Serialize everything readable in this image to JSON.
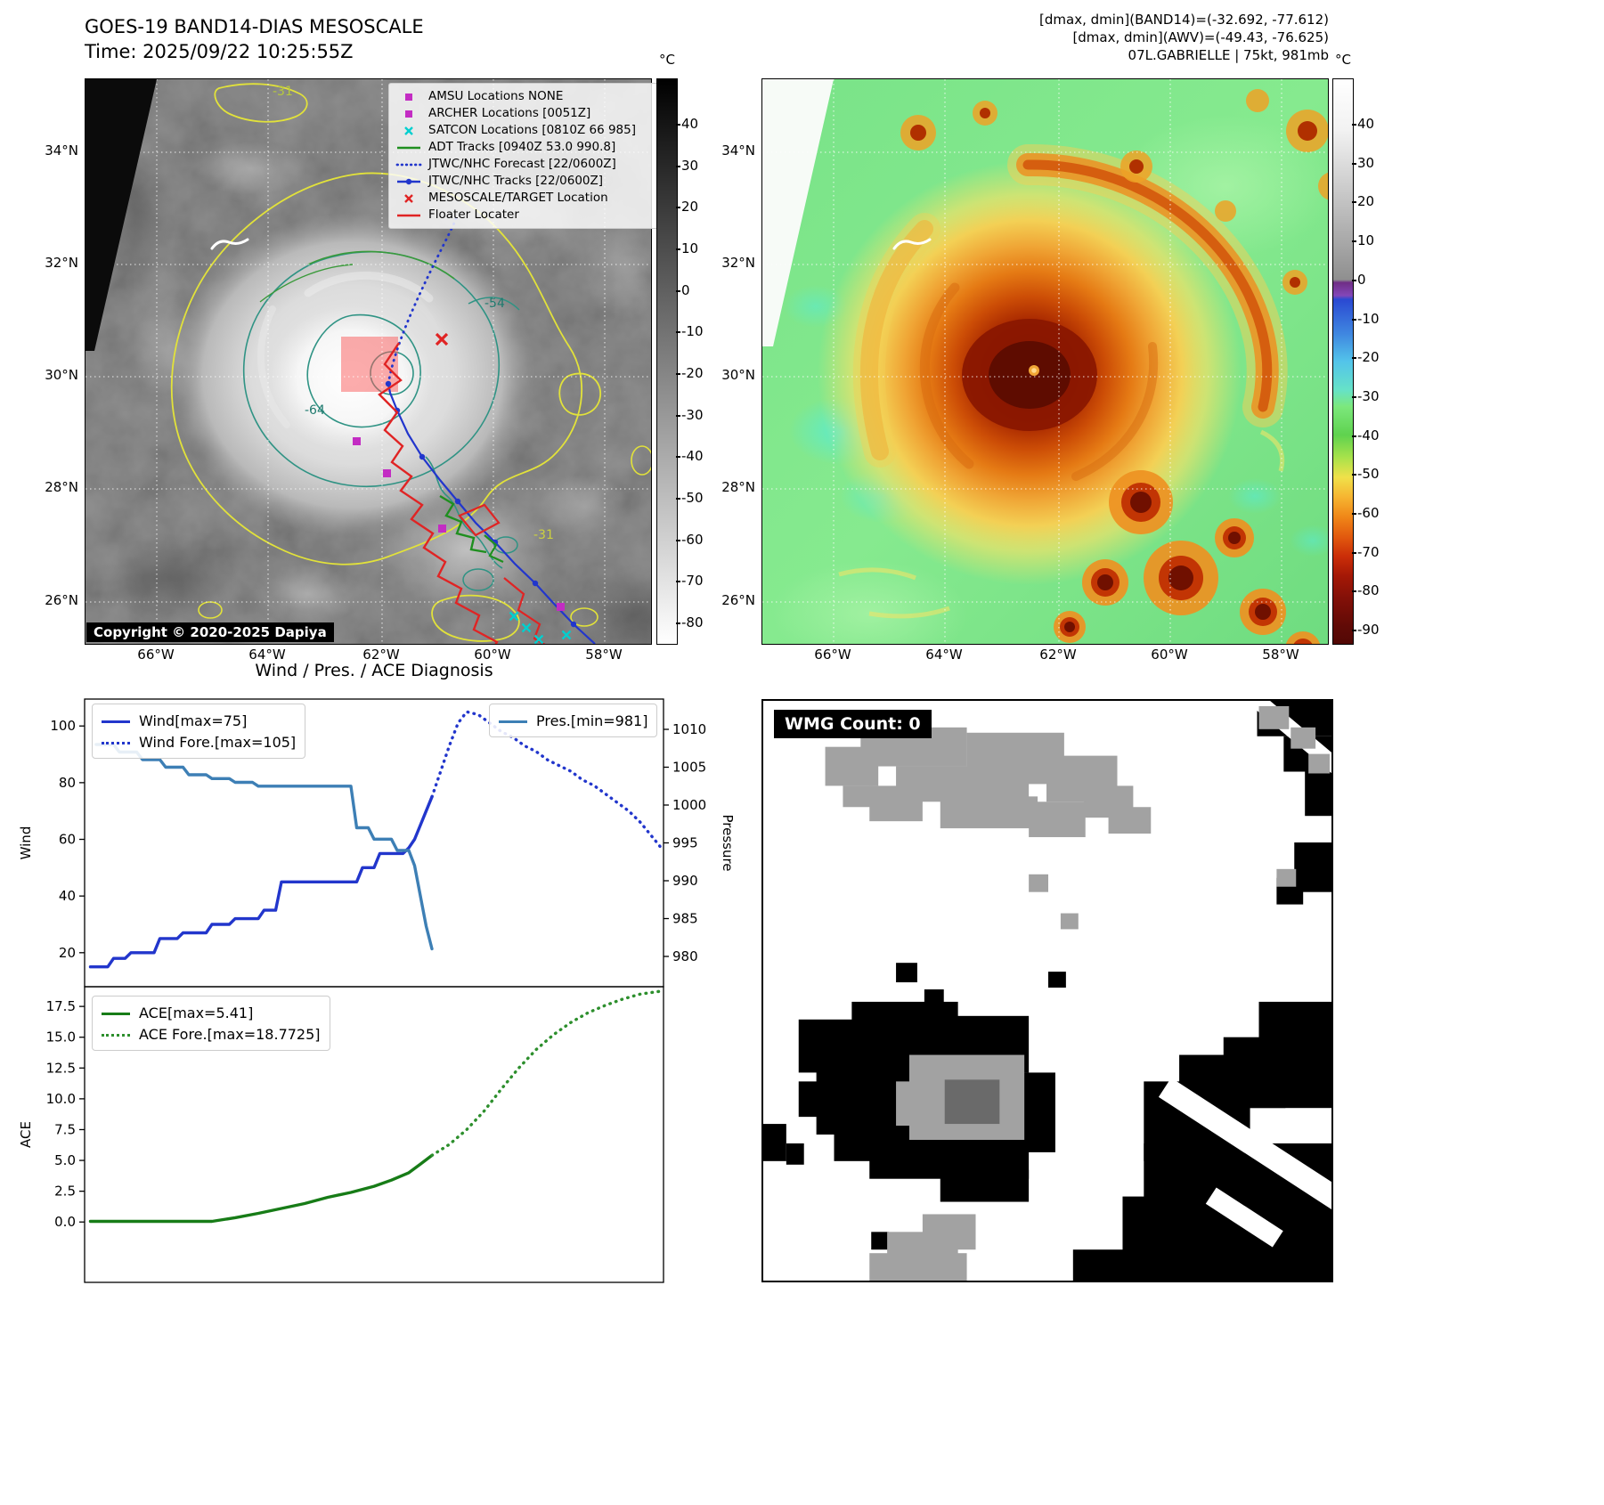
{
  "panel_tl": {
    "title": "GOES-19 BAND14-DIAS MESOSCALE",
    "subtitle": "Time: 2025/09/22 10:25:55Z",
    "copyright": "Copyright © 2020-2025 Dapiya",
    "lat_ticks": [
      "34°N",
      "32°N",
      "30°N",
      "28°N",
      "26°N"
    ],
    "lon_ticks": [
      "66°W",
      "64°W",
      "62°W",
      "60°W",
      "58°W"
    ],
    "colorbar_unit": "°C",
    "colorbar_ticks": [
      40,
      30,
      20,
      10,
      0,
      -10,
      -20,
      -30,
      -40,
      -50,
      -60,
      -70,
      -80
    ],
    "legend": [
      {
        "label": "AMSU Locations NONE",
        "marker": "square",
        "color": "#c32cc3"
      },
      {
        "label": "ARCHER Locations [0051Z]",
        "marker": "square",
        "color": "#c32cc3"
      },
      {
        "label": "SATCON Locations [0810Z 66 985]",
        "marker": "x",
        "color": "#00cfcf"
      },
      {
        "label": "ADT Tracks [0940Z 53.0 990.8]",
        "marker": "line",
        "color": "#1f8f1f"
      },
      {
        "label": "JTWC/NHC Forecast [22/0600Z]",
        "marker": "dotted",
        "color": "#2236cc"
      },
      {
        "label": "JTWC/NHC Tracks [22/0600Z]",
        "marker": "line-dot",
        "color": "#2236cc"
      },
      {
        "label": "MESOSCALE/TARGET Location",
        "marker": "x",
        "color": "#e02424"
      },
      {
        "label": "Floater Locater",
        "marker": "line",
        "color": "#e02424"
      }
    ],
    "contour_labels": {
      "c54": "-54",
      "c64": "-64",
      "c31a": "-31",
      "c31b": "-31"
    }
  },
  "panel_tr": {
    "info_line1": "[dmax, dmin](BAND14)=(-32.692, -77.612)",
    "info_line2": "[dmax, dmin](AWV)=(-49.43, -76.625)",
    "info_line3": "07L.GABRIELLE | 75kt, 981mb",
    "lat_ticks": [
      "34°N",
      "32°N",
      "30°N",
      "28°N",
      "26°N"
    ],
    "lon_ticks": [
      "66°W",
      "64°W",
      "62°W",
      "60°W",
      "58°W"
    ],
    "colorbar_unit": "°C",
    "colorbar_ticks": [
      40,
      30,
      20,
      10,
      0,
      -10,
      -20,
      -30,
      -40,
      -50,
      -60,
      -70,
      -80,
      -90
    ]
  },
  "panel_bl": {
    "title": "Wind / Pres. / ACE Diagnosis"
  },
  "panel_br": {
    "wmg_label": "WMG Count: 0"
  },
  "chart_data": [
    {
      "type": "line",
      "title": "Wind / Pres. / ACE Diagnosis",
      "ylabel_left": "Wind",
      "ylabel_right": "Pressure",
      "yticks_left": [
        20,
        40,
        60,
        80,
        100
      ],
      "yticks_right": [
        980,
        985,
        990,
        995,
        1000,
        1005,
        1010
      ],
      "ylim_left": [
        8,
        109.5
      ],
      "ylim_right": [
        976,
        1014
      ],
      "xlim": [
        0,
        100
      ],
      "ytick_decimals": 0,
      "series": [
        {
          "name": "Wind[max=75]",
          "style": "solid",
          "color": "#2236cc",
          "axis": "left",
          "x": [
            1,
            4,
            5,
            7,
            8,
            12,
            13,
            16,
            17,
            21,
            22,
            25,
            26,
            30,
            31,
            33,
            34,
            47,
            48,
            50,
            51,
            55,
            56,
            57,
            58,
            59,
            60
          ],
          "y": [
            15,
            15,
            18,
            18,
            20,
            20,
            25,
            25,
            27,
            27,
            30,
            30,
            32,
            32,
            35,
            35,
            45,
            45,
            50,
            50,
            55,
            55,
            57,
            60,
            65,
            70,
            75
          ]
        },
        {
          "name": "Wind Fore.[max=105]",
          "style": "dotted",
          "color": "#2236cc",
          "axis": "left",
          "x": [
            60,
            61.5,
            63,
            64.5,
            66,
            68,
            70,
            72,
            74,
            76,
            78,
            80,
            82,
            84,
            86,
            88,
            90,
            92,
            94,
            96,
            98,
            100
          ],
          "y": [
            75,
            84,
            93,
            101,
            105,
            104,
            101,
            98,
            96,
            93,
            91,
            88,
            86,
            84,
            81,
            79,
            76,
            73,
            70,
            66,
            61,
            56
          ]
        },
        {
          "name": "Pres.[min=981]",
          "style": "solid",
          "color": "#3d7fb5",
          "axis": "right",
          "x": [
            2,
            5,
            6,
            9,
            10,
            13,
            14,
            17,
            18,
            21,
            22,
            25,
            26,
            29,
            30,
            46,
            47,
            49,
            50,
            53,
            54,
            56,
            57,
            58,
            59,
            60
          ],
          "y": [
            1008,
            1008,
            1007,
            1007,
            1006,
            1006,
            1005,
            1005,
            1004,
            1004,
            1003.5,
            1003.5,
            1003,
            1003,
            1002.5,
            1002.5,
            997,
            997,
            995.5,
            995.5,
            994,
            994,
            992,
            988,
            984,
            981
          ]
        }
      ]
    },
    {
      "type": "line",
      "ylabel_left": "ACE",
      "yticks_left": [
        0,
        2.5,
        5,
        7.5,
        10,
        12.5,
        15,
        17.5
      ],
      "ylim_left": [
        -4.9,
        19.1
      ],
      "xlim": [
        0,
        100
      ],
      "ytick_decimals": 1,
      "series": [
        {
          "name": "ACE[max=5.41]",
          "style": "solid",
          "color": "#177c17",
          "axis": "left",
          "x": [
            1,
            22,
            26,
            30,
            34,
            38,
            42,
            46,
            50,
            53,
            56,
            58,
            60
          ],
          "y": [
            0.05,
            0.05,
            0.35,
            0.7,
            1.1,
            1.5,
            2.0,
            2.4,
            2.9,
            3.4,
            4.0,
            4.7,
            5.41
          ]
        },
        {
          "name": "ACE Fore.[max=18.7725]",
          "style": "dotted",
          "color": "#2d8f2d",
          "axis": "left",
          "x": [
            60,
            63,
            66,
            69,
            72,
            75,
            78,
            81,
            84,
            87,
            90,
            93,
            96,
            100
          ],
          "y": [
            5.41,
            6.3,
            7.5,
            9.0,
            10.8,
            12.5,
            14.0,
            15.2,
            16.2,
            17.0,
            17.6,
            18.1,
            18.5,
            18.77
          ]
        }
      ]
    }
  ]
}
